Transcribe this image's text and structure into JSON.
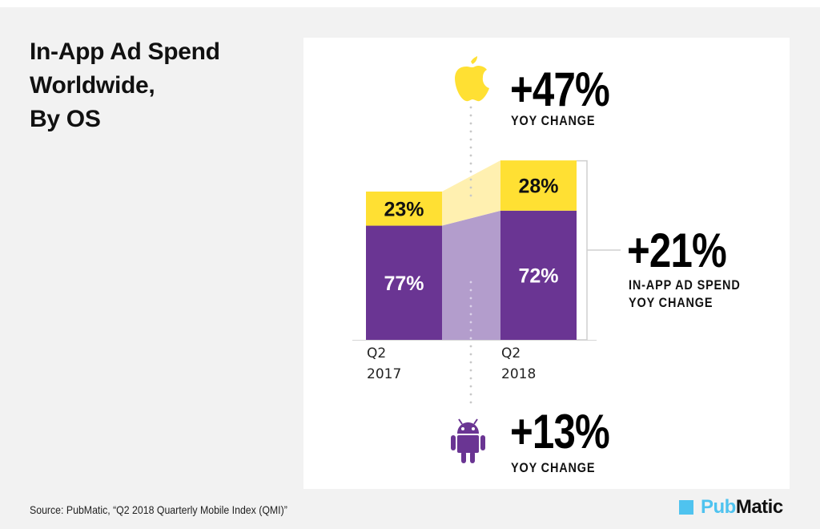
{
  "title_lines": [
    "In-App Ad Spend",
    "Worldwide,",
    "By OS"
  ],
  "callouts": {
    "ios": {
      "icon": "apple-icon",
      "value": "+47%",
      "caption": "YOY CHANGE"
    },
    "total": {
      "value": "+21%",
      "caption_lines": [
        "IN-APP AD SPEND",
        "YOY CHANGE"
      ]
    },
    "android": {
      "icon": "android-icon",
      "value": "+13%",
      "caption": "YOY CHANGE"
    }
  },
  "colors": {
    "ios": "#ffe033",
    "ios_connector": "#fff0b0",
    "android": "#6a3593",
    "android_connector": "#b39dcc",
    "background": "#f2f2f2",
    "panel": "#ffffff",
    "brand_blue": "#4fc3ef"
  },
  "chart_data": {
    "type": "bar",
    "stacked": true,
    "title": "In-App Ad Spend Worldwide, By OS",
    "categories": [
      "Q2 2017",
      "Q2 2018"
    ],
    "category_label_lines": [
      [
        "Q2",
        "2017"
      ],
      [
        "Q2",
        "2018"
      ]
    ],
    "relative_total": [
      1.0,
      1.21
    ],
    "series": [
      {
        "name": "Android",
        "values": [
          77,
          72
        ],
        "labels": [
          "77%",
          "72%"
        ],
        "yoy_change": "+13%"
      },
      {
        "name": "iOS",
        "values": [
          23,
          28
        ],
        "labels": [
          "23%",
          "28%"
        ],
        "yoy_change": "+47%"
      }
    ],
    "total_yoy_change": "+21%",
    "ylabel": "",
    "xlabel": "",
    "grid": false,
    "legend": "none"
  },
  "footer": {
    "source": "Source: PubMatic, “Q2 2018 Quarterly Mobile Index (QMI)”",
    "logo_pub": "Pub",
    "logo_matic": "Matic"
  }
}
